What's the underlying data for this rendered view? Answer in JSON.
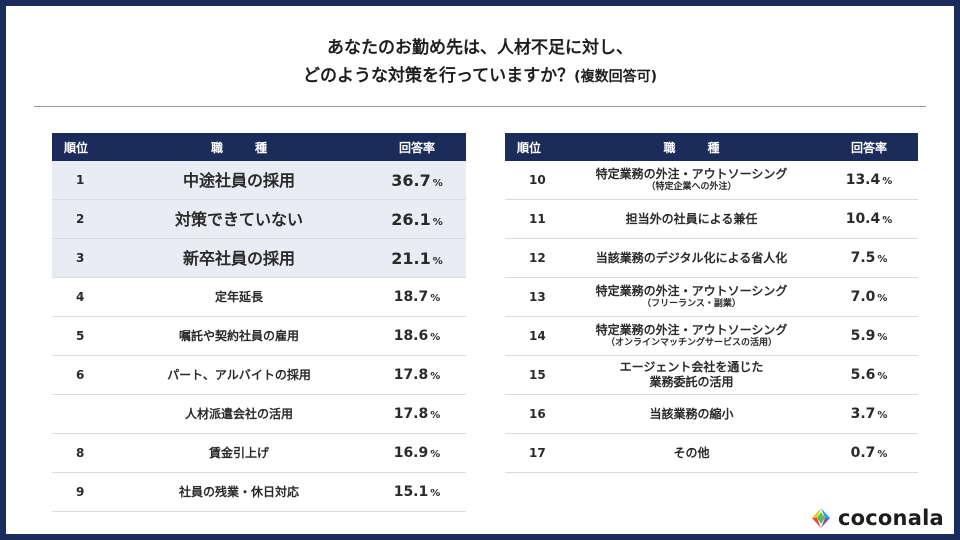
{
  "title": {
    "line1": "あなたのお勤め先は、人材不足に対し、",
    "line2": "どのような対策を行っていますか？",
    "line2_suffix": "(複数回答可)"
  },
  "table_header": {
    "rank": "順位",
    "job_a": "職",
    "job_b": "種",
    "rate": "回答率"
  },
  "left_rows": [
    {
      "rank": "1",
      "job": "中途社員の採用",
      "sub": "",
      "value": "36.7",
      "unit": "%"
    },
    {
      "rank": "2",
      "job": "対策できていない",
      "sub": "",
      "value": "26.1",
      "unit": "%"
    },
    {
      "rank": "3",
      "job": "新卒社員の採用",
      "sub": "",
      "value": "21.1",
      "unit": "%"
    },
    {
      "rank": "4",
      "job": "定年延長",
      "sub": "",
      "value": "18.7",
      "unit": "%"
    },
    {
      "rank": "5",
      "job": "嘱託や契約社員の雇用",
      "sub": "",
      "value": "18.6",
      "unit": "%"
    },
    {
      "rank": "6",
      "job": "パート、アルバイトの採用",
      "sub": "",
      "value": "17.8",
      "unit": "%"
    },
    {
      "rank": "",
      "job": "人材派遣会社の活用",
      "sub": "",
      "value": "17.8",
      "unit": "%"
    },
    {
      "rank": "8",
      "job": "賃金引上げ",
      "sub": "",
      "value": "16.9",
      "unit": "%"
    },
    {
      "rank": "9",
      "job": "社員の残業・休日対応",
      "sub": "",
      "value": "15.1",
      "unit": "%"
    }
  ],
  "right_rows": [
    {
      "rank": "10",
      "job": "特定業務の外注・アウトソーシング",
      "sub": "（特定企業への外注）",
      "value": "13.4",
      "unit": "%"
    },
    {
      "rank": "11",
      "job": "担当外の社員による兼任",
      "sub": "",
      "value": "10.4",
      "unit": "%"
    },
    {
      "rank": "12",
      "job": "当該業務のデジタル化による省人化",
      "sub": "",
      "value": "7.5",
      "unit": "%"
    },
    {
      "rank": "13",
      "job": "特定業務の外注・アウトソーシング",
      "sub": "（フリーランス・副業）",
      "value": "7.0",
      "unit": "%"
    },
    {
      "rank": "14",
      "job": "特定業務の外注・アウトソーシング",
      "sub": "（オンラインマッチングサービスの活用）",
      "value": "5.9",
      "unit": "%"
    },
    {
      "rank": "15",
      "job": "エージェント会社を通じた",
      "sub": "業務委託の活用",
      "value": "5.6",
      "unit": "%"
    },
    {
      "rank": "16",
      "job": "当該業務の縮小",
      "sub": "",
      "value": "3.7",
      "unit": "%"
    },
    {
      "rank": "17",
      "job": "その他",
      "sub": "",
      "value": "0.7",
      "unit": "%"
    }
  ],
  "logo": {
    "text": "coconala",
    "icon": "coconala-logo-icon"
  },
  "colors": {
    "header": "#1c2c5a",
    "highlight_row": "#eaecf3",
    "frame": "#1c2c5a"
  }
}
